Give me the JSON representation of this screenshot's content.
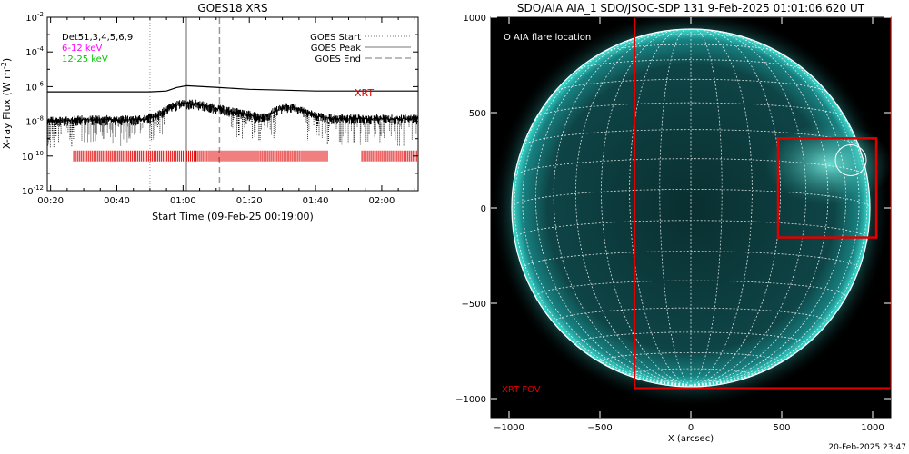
{
  "chart_data": [
    {
      "type": "line",
      "title": "GOES18 XRS",
      "xlabel": "Start Time (09-Feb-25 00:19:00)",
      "ylabel": "X-ray Flux (W m",
      "ylabel_sup": "-2",
      "ylabel_close": ")",
      "x_ticks": [
        "00:20",
        "00:40",
        "01:00",
        "01:20",
        "01:40",
        "02:00"
      ],
      "x_tick_minutes": [
        20,
        40,
        60,
        80,
        100,
        120
      ],
      "xlim_minutes": [
        19,
        131
      ],
      "y_log": true,
      "ylim": [
        1e-12,
        0.01
      ],
      "y_tick_base": "10",
      "y_tick_exponents": [
        "-2",
        "-4",
        "-6",
        "-8",
        "-10",
        "-12"
      ],
      "y_tick_values": [
        -2,
        -4,
        -6,
        -8,
        -10,
        -12
      ],
      "info_lines": [
        {
          "text": "Det51,3,4,5,6,9",
          "color": "#000000"
        },
        {
          "text": "6-12 keV",
          "color": "#ff00ff"
        },
        {
          "text": "12-25 keV",
          "color": "#00c800"
        }
      ],
      "legend": [
        {
          "label": "GOES Start",
          "style": "dotted"
        },
        {
          "label": "GOES Peak",
          "style": "solid"
        },
        {
          "label": "GOES End",
          "style": "dashed"
        }
      ],
      "event_lines_minutes": {
        "start": 50,
        "peak": 61,
        "end": 71
      },
      "xrt_label": "XRT",
      "xrt_color": "#e00000",
      "xrt_bar_level": 1e-10,
      "xrt_coverage_minutes": [
        [
          27,
          64
        ],
        [
          64,
          92
        ],
        [
          92,
          104
        ],
        [
          114,
          131
        ]
      ],
      "series": [
        {
          "name": "GOES long channel",
          "x_minutes": [
            19,
            40,
            50,
            55,
            58,
            61,
            66,
            71,
            80,
            90,
            100,
            110,
            120,
            131
          ],
          "log_flux": [
            -6.3,
            -6.3,
            -6.3,
            -6.25,
            -6.05,
            -5.95,
            -6.0,
            -6.05,
            -6.15,
            -6.2,
            -6.25,
            -6.25,
            -6.25,
            -6.25
          ]
        },
        {
          "name": "GOES short channel",
          "x_minutes": [
            19,
            30,
            40,
            48,
            52,
            56,
            60,
            64,
            70,
            78,
            84,
            88,
            91,
            95,
            100,
            105,
            110,
            120,
            131
          ],
          "log_flux": [
            -8.0,
            -7.9,
            -7.9,
            -7.9,
            -7.7,
            -7.2,
            -6.95,
            -7.0,
            -7.25,
            -7.55,
            -7.8,
            -7.4,
            -7.15,
            -7.3,
            -7.7,
            -7.85,
            -7.85,
            -7.85,
            -7.85
          ]
        }
      ]
    },
    {
      "type": "image",
      "title": "SDO/AIA AIA_1 SDO/JSOC-SDP 131  9-Feb-2025 01:01:06.620 UT",
      "xlabel": "X (arcsec)",
      "x_ticks": [
        "−1000",
        "−500",
        "0",
        "500",
        "1000"
      ],
      "x_tick_values": [
        -1000,
        -500,
        0,
        500,
        1000
      ],
      "y_ticks": [
        "1000",
        "500",
        "0",
        "−500",
        "−1000"
      ],
      "y_tick_values": [
        1000,
        500,
        0,
        -500,
        -1000
      ],
      "xlim": [
        -1100,
        1100
      ],
      "ylim": [
        -1100,
        1000
      ],
      "solar_radius_arcsec": 985,
      "flare_legend": "O AIA flare location",
      "flare_location": [
        880,
        250
      ],
      "xrt_fov_label": "XRT FOV",
      "xrt_fov": {
        "x": [
          -310,
          1100
        ],
        "y": [
          -945,
          1000
        ]
      },
      "zoom_box": {
        "x": [
          480,
          1020
        ],
        "y": [
          -155,
          365
        ]
      },
      "colors": {
        "disk": "#0c3a3a",
        "limb": "#2fd6cc",
        "grid": "#ffffff",
        "box": "#e00000"
      }
    }
  ],
  "footer": {
    "timestamp": "20-Feb-2025 23:47"
  }
}
